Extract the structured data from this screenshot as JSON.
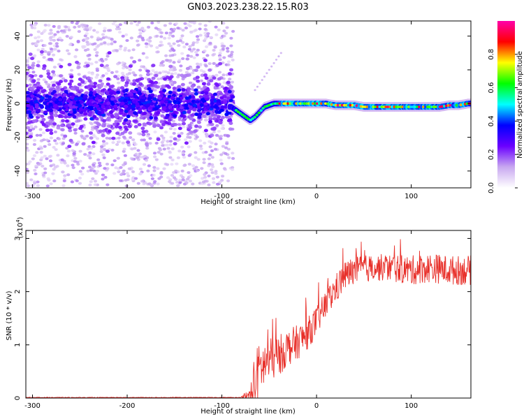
{
  "title": "GN03.2023.238.22.15.R03",
  "colors": {
    "snr_line": "#e8302a",
    "axis": "#000000",
    "background": "#ffffff"
  },
  "chart_data": [
    {
      "type": "heatmap",
      "xlabel": "Height of straight line (km)",
      "ylabel": "Frequency (Hz)",
      "xlim": [
        -307,
        163
      ],
      "ylim": [
        -50,
        49
      ],
      "x_ticks": [
        -300,
        -200,
        -100,
        0,
        100
      ],
      "x_tick_labels": [
        "-300",
        "-200",
        "-100",
        "0",
        "100"
      ],
      "y_ticks": [
        -40,
        -20,
        0,
        20,
        40
      ],
      "y_tick_labels": [
        "-40",
        "-20",
        "0",
        "20",
        "40"
      ],
      "grid": false,
      "colorbar": {
        "label": "Normalized spectral amplitude",
        "range": [
          0,
          1
        ],
        "ticks": [
          0.0,
          0.2,
          0.4,
          0.6,
          0.8
        ],
        "tick_labels": [
          "0.0",
          "0.2",
          "0.4",
          "0.6",
          "0.8"
        ],
        "colors": [
          "#ffffff",
          "#c8a8f0",
          "#6a00ff",
          "#0000ff",
          "#00ffff",
          "#00ff00",
          "#ffff00",
          "#ff0000",
          "#ff00aa"
        ]
      },
      "frequency_track": {
        "x": [
          -90,
          -85,
          -80,
          -75,
          -70,
          -65,
          -60,
          -55,
          -50,
          -45,
          -40,
          -30,
          -20,
          -10,
          0,
          10,
          20,
          30,
          40,
          50,
          60,
          70,
          80,
          90,
          100,
          110,
          120,
          130,
          140,
          150,
          160
        ],
        "y": [
          -2,
          -4,
          -6,
          -8,
          -10,
          -8,
          -5,
          -2,
          -1,
          0,
          0,
          0,
          0,
          0,
          0,
          0,
          -1,
          -1,
          -1,
          -2,
          -2,
          -2,
          -2,
          -2,
          -2,
          -2,
          -2,
          -2,
          -1,
          -1,
          0
        ]
      },
      "noise_region": {
        "x_range": [
          -307,
          -88
        ],
        "frequency_spread": 49,
        "centered_on": 0
      }
    },
    {
      "type": "line",
      "xlabel": "Height of straight line (km)",
      "ylabel": "SNR (10 * v/v)",
      "y_scale_label": "(x10",
      "y_scale_exponent": "4",
      "xlim": [
        -307,
        163
      ],
      "ylim": [
        0,
        3.15
      ],
      "x_ticks": [
        -300,
        -200,
        -100,
        0,
        100
      ],
      "x_tick_labels": [
        "-300",
        "-200",
        "-100",
        "0",
        "100"
      ],
      "y_ticks": [
        0,
        1,
        2,
        3
      ],
      "y_tick_labels": [
        "0",
        "1",
        "2",
        "3"
      ],
      "grid": false,
      "trend": {
        "x": [
          -307,
          -80,
          -70,
          -65,
          -60,
          -50,
          -40,
          -30,
          -20,
          -10,
          0,
          10,
          20,
          30,
          40,
          60,
          80,
          100,
          120,
          140,
          163
        ],
        "y": [
          0.01,
          0.01,
          0.02,
          0.35,
          0.55,
          0.7,
          0.8,
          0.95,
          1.05,
          1.2,
          1.45,
          1.75,
          2.05,
          2.3,
          2.4,
          2.45,
          2.45,
          2.4,
          2.45,
          2.4,
          2.4
        ]
      },
      "noise_amplitude": {
        "x": [
          -307,
          -80,
          -70,
          -65,
          -60,
          -50,
          -30,
          0,
          30,
          60,
          100,
          163
        ],
        "y": [
          0.005,
          0.005,
          0.15,
          0.4,
          0.35,
          0.3,
          0.25,
          0.2,
          0.2,
          0.18,
          0.2,
          0.2
        ]
      }
    }
  ]
}
